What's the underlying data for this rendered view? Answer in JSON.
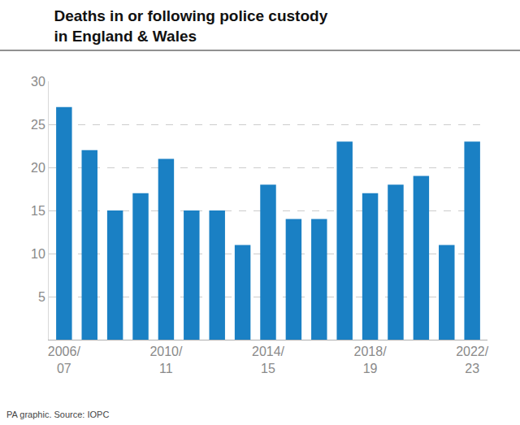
{
  "chart_data": {
    "type": "bar",
    "title": "Deaths in or following police custody\nin England & Wales",
    "caption": "PA graphic. Source: IOPC",
    "categories": [
      "2006/\n07",
      null,
      null,
      null,
      "2010/\n11",
      null,
      null,
      null,
      "2014/\n15",
      null,
      null,
      null,
      "2018/\n19",
      null,
      null,
      null,
      "2022/\n23"
    ],
    "values": [
      27,
      22,
      15,
      17,
      21,
      15,
      15,
      11,
      18,
      14,
      14,
      23,
      17,
      18,
      19,
      11,
      23
    ],
    "color": "#1a80c4",
    "ylim": [
      0,
      30
    ],
    "yticks": [
      5,
      10,
      15,
      20,
      25,
      30
    ],
    "grid": true
  }
}
